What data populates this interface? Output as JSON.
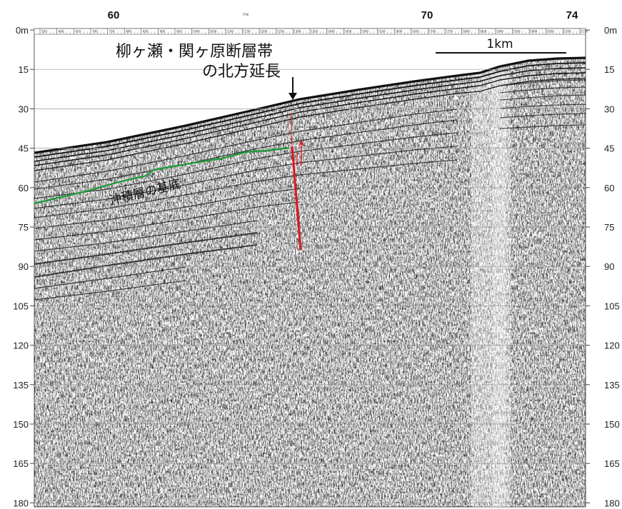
{
  "annotation": {
    "fault_title_line1": "柳ヶ瀬・関ヶ原断層帯",
    "fault_title_line2": "の北方延長",
    "alluvium_label": "沖積層の基底",
    "scale_bar_label": "1km"
  },
  "depth_axis": {
    "ticks": [
      "0m",
      "15",
      "30",
      "45",
      "60",
      "75",
      "90",
      "105",
      "120",
      "135",
      "150",
      "165",
      "180"
    ],
    "right_ticks": [
      "0m",
      "15",
      "30",
      "45",
      "60",
      "75",
      "90",
      "105",
      "120",
      "135",
      "150",
      "165",
      "180"
    ]
  },
  "shot_axis": {
    "major_labels": [
      "60",
      "70",
      "74"
    ],
    "unit": "FFN",
    "fine_labels": [
      "550",
      "600",
      "650",
      "700",
      "750",
      "800",
      "850",
      "900",
      "950",
      "1000",
      "1050",
      "1100",
      "1150",
      "1200",
      "1250",
      "1300",
      "1350",
      "1400",
      "1450",
      "1500",
      "1550",
      "1600",
      "1650",
      "1700",
      "1750",
      "1800",
      "1850",
      "1900",
      "1950",
      "2000",
      "2050",
      "2100",
      "2150"
    ]
  },
  "colors": {
    "fault_line": "#e0141e",
    "alluvium_line": "#1f9a3a",
    "grid": "#9a9a9a"
  }
}
